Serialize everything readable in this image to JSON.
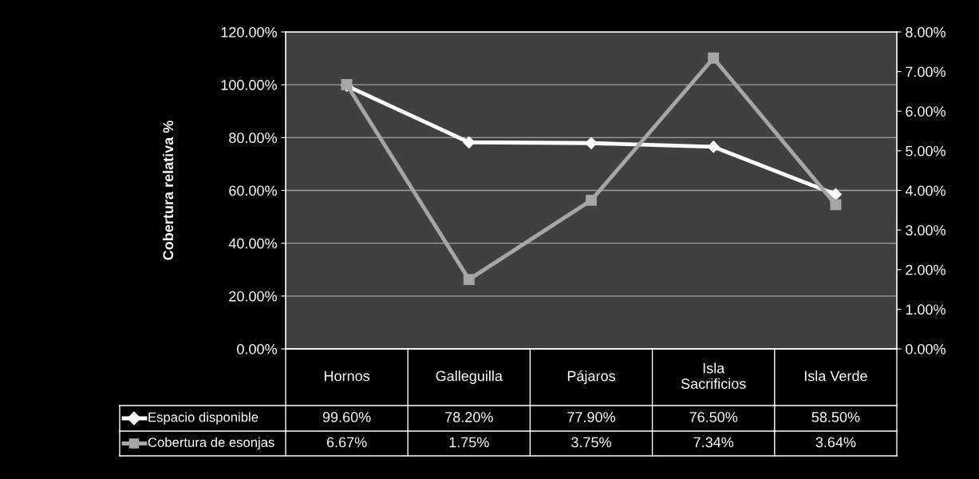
{
  "chart_data": {
    "type": "line",
    "ylabel": "Cobertura relativa %",
    "categories": [
      "Hornos",
      "Galleguilla",
      "Pájaros",
      "Isla\nSacrificios",
      "Isla Verde"
    ],
    "series": [
      {
        "name": "Espacio disponible",
        "color": "#ffffff",
        "marker": "diamond",
        "values": [
          99.6,
          78.2,
          77.9,
          76.5,
          58.5
        ],
        "value_labels": [
          "99.60%",
          "78.20%",
          "77.90%",
          "76.50%",
          "58.50%"
        ]
      },
      {
        "name": "Cobertura de esonjas",
        "color": "#a6a6a6",
        "marker": "square",
        "axis": "y2",
        "values": [
          6.67,
          1.75,
          3.75,
          7.34,
          3.64
        ],
        "value_labels": [
          "6.67%",
          "1.75%",
          "3.75%",
          "7.34%",
          "3.64%"
        ]
      }
    ],
    "ylim": [
      0,
      120
    ],
    "yticks": [
      {
        "value": 0,
        "label": "0.00%"
      },
      {
        "value": 20,
        "label": "20.00%"
      },
      {
        "value": 40,
        "label": "40.00%"
      },
      {
        "value": 60,
        "label": "60.00%"
      },
      {
        "value": 80,
        "label": "80.00%"
      },
      {
        "value": 100,
        "label": "100.00%"
      },
      {
        "value": 120,
        "label": "120.00%"
      }
    ],
    "y2lim": [
      0,
      8
    ],
    "y2ticks": [
      {
        "value": 0,
        "label": "0.00%"
      },
      {
        "value": 1,
        "label": "1.00%"
      },
      {
        "value": 2,
        "label": "2.00%"
      },
      {
        "value": 3,
        "label": "3.00%"
      },
      {
        "value": 4,
        "label": "4.00%"
      },
      {
        "value": 5,
        "label": "5.00%"
      },
      {
        "value": 6,
        "label": "6.00%"
      },
      {
        "value": 7,
        "label": "7.00%"
      },
      {
        "value": 8,
        "label": "8.00%"
      }
    ],
    "grid": "y",
    "legend": "bottom"
  }
}
